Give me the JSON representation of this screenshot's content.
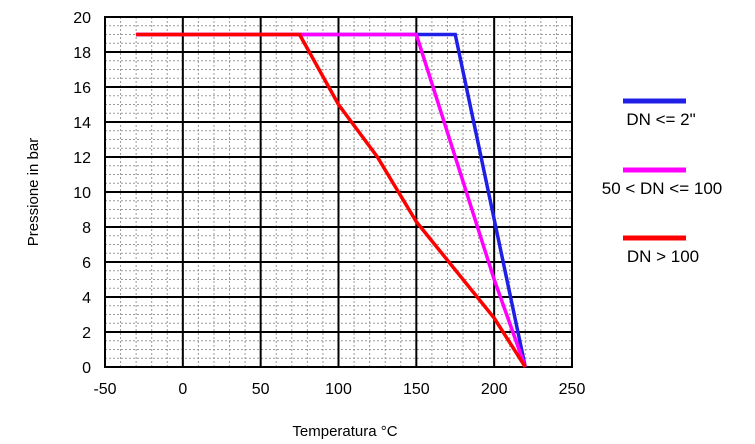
{
  "chart_data": {
    "type": "line",
    "xlabel": "Temperatura °C",
    "ylabel": "Pressione in bar",
    "xlim": [
      -50,
      250
    ],
    "ylim": [
      0,
      20
    ],
    "x_ticks": [
      -50,
      0,
      50,
      100,
      150,
      200,
      250
    ],
    "y_ticks": [
      0,
      2,
      4,
      6,
      8,
      10,
      12,
      14,
      16,
      18,
      20
    ],
    "x_ticks_text": [
      "-50",
      "0",
      "50",
      "100",
      "150",
      "200",
      "250"
    ],
    "y_ticks_text": [
      "0",
      "2",
      "4",
      "6",
      "8",
      "10",
      "12",
      "14",
      "16",
      "18",
      "20"
    ],
    "grid": true,
    "minor_grid": true,
    "legend_position": "right",
    "series": [
      {
        "name": "DN <= 2\"",
        "color": "#1f1fe6",
        "x": [
          -30,
          175,
          220
        ],
        "y": [
          19,
          19,
          0
        ]
      },
      {
        "name": "50 < DN <= 100",
        "color": "#ff00ff",
        "x": [
          -30,
          150,
          200,
          220
        ],
        "y": [
          19,
          19,
          5,
          0
        ]
      },
      {
        "name": "DN > 100",
        "color": "#ff0000",
        "x": [
          -30,
          75,
          100,
          125,
          150,
          200,
          220
        ],
        "y": [
          19,
          19,
          15,
          12,
          8.3,
          2.8,
          0
        ]
      }
    ]
  }
}
